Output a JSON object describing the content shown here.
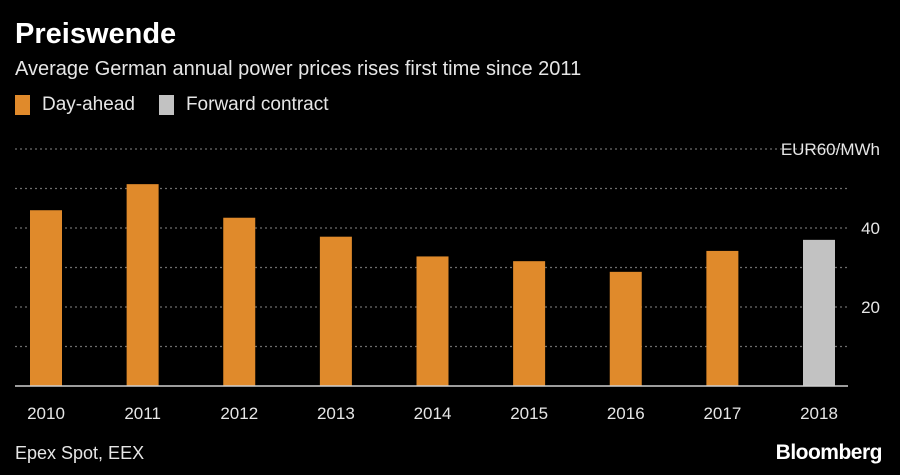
{
  "header": {
    "title": "Preiswende",
    "subtitle": "Average German annual power prices rises first time since 2011"
  },
  "legend": [
    {
      "label": "Day-ahead",
      "color": "#e08a2b"
    },
    {
      "label": "Forward contract",
      "color": "#c2c2c2"
    }
  ],
  "footer": {
    "source": "Epex Spot, EEX",
    "brand": "Bloomberg"
  },
  "colors": {
    "background": "#000000",
    "day_ahead": "#e08a2b",
    "forward": "#c2c2c2",
    "grid": "#6e6e6e",
    "text": "#e6e6e6"
  },
  "chart_data": {
    "type": "bar",
    "title": "Preiswende",
    "subtitle": "Average German annual power prices rises first time since 2011",
    "categories": [
      "2010",
      "2011",
      "2012",
      "2013",
      "2014",
      "2015",
      "2016",
      "2017",
      "2018"
    ],
    "values": [
      44.5,
      51.1,
      42.6,
      37.8,
      32.8,
      31.6,
      28.9,
      34.2,
      37.0
    ],
    "series_type": [
      "Day-ahead",
      "Day-ahead",
      "Day-ahead",
      "Day-ahead",
      "Day-ahead",
      "Day-ahead",
      "Day-ahead",
      "Day-ahead",
      "Forward contract"
    ],
    "ylim": [
      0,
      60
    ],
    "yticks": [
      20,
      40
    ],
    "top_tick_label": "EUR60/MWh",
    "gridlines": [
      10,
      20,
      30,
      40,
      50,
      60
    ],
    "grid": true,
    "y_axis_position": "right",
    "legend_position": "top-left"
  }
}
